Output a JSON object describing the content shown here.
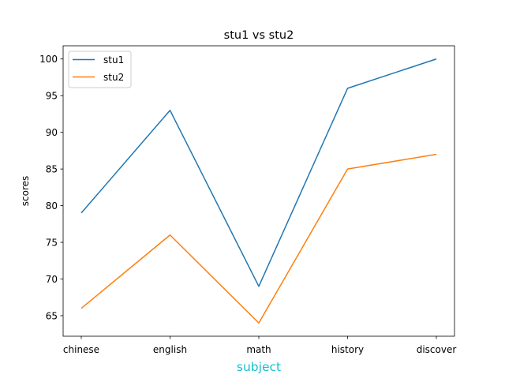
{
  "chart_data": {
    "type": "line",
    "title": "stu1 vs stu2",
    "xlabel": "subject",
    "ylabel": "scores",
    "categories": [
      "chinese",
      "english",
      "math",
      "history",
      "discover"
    ],
    "series": [
      {
        "name": "stu1",
        "values": [
          79,
          93,
          69,
          96,
          100
        ],
        "color": "#1f77b4"
      },
      {
        "name": "stu2",
        "values": [
          66,
          76,
          64,
          85,
          87
        ],
        "color": "#ff7f0e"
      }
    ],
    "ylim": [
      62.2,
      101.8
    ],
    "yticks": [
      65,
      70,
      75,
      80,
      85,
      90,
      95,
      100
    ],
    "grid": false,
    "legend_position": "top-left",
    "xlabel_color": "#17becf"
  }
}
